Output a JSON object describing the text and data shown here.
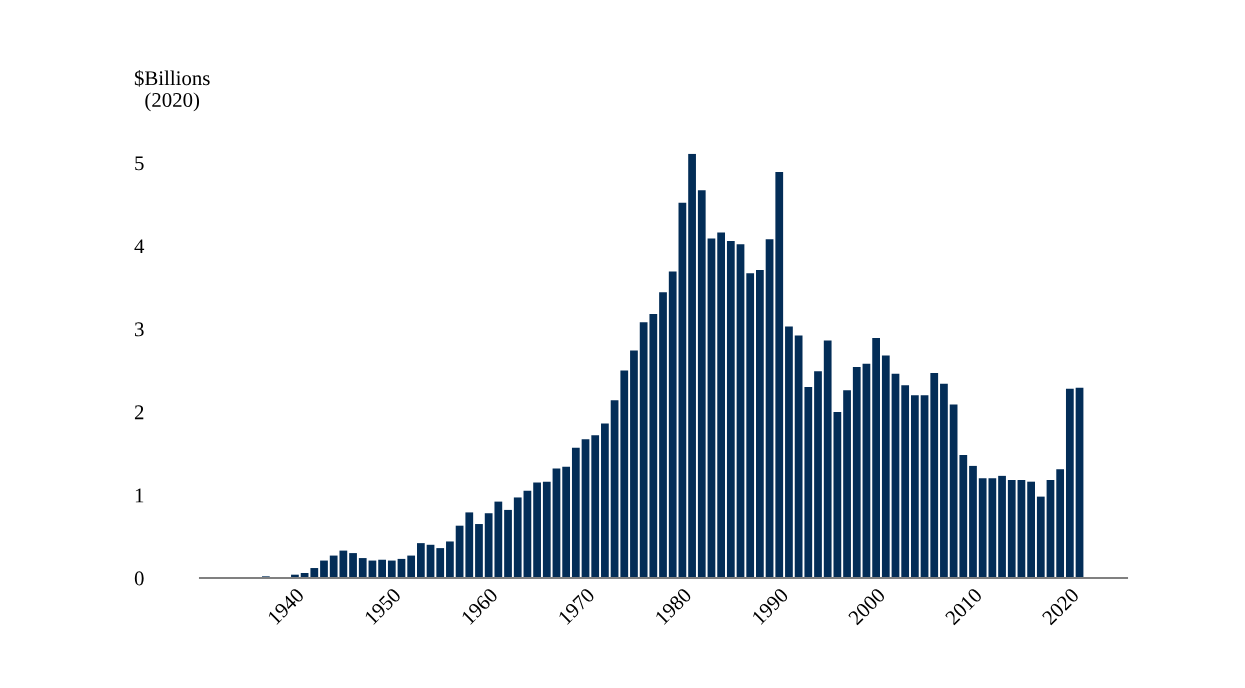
{
  "chart_data": {
    "type": "bar",
    "ylabel": "$Billions\n(2020)",
    "x": [
      1936,
      1937,
      1938,
      1939,
      1940,
      1941,
      1942,
      1943,
      1944,
      1945,
      1946,
      1947,
      1948,
      1949,
      1950,
      1951,
      1952,
      1953,
      1954,
      1955,
      1956,
      1957,
      1958,
      1959,
      1960,
      1961,
      1962,
      1963,
      1964,
      1965,
      1966,
      1967,
      1968,
      1969,
      1970,
      1971,
      1972,
      1973,
      1974,
      1975,
      1976,
      1977,
      1978,
      1979,
      1980,
      1981,
      1982,
      1983,
      1984,
      1985,
      1986,
      1987,
      1988,
      1989,
      1990,
      1991,
      1992,
      1993,
      1994,
      1995,
      1996,
      1997,
      1998,
      1999,
      2000,
      2001,
      2002,
      2003,
      2004,
      2005,
      2006,
      2007,
      2008,
      2009,
      2010,
      2011,
      2012,
      2013,
      2014,
      2015,
      2016,
      2017,
      2018,
      2019,
      2020,
      2021
    ],
    "values": [
      0.01,
      0.02,
      0.01,
      0.01,
      0.04,
      0.06,
      0.12,
      0.21,
      0.27,
      0.33,
      0.3,
      0.24,
      0.21,
      0.22,
      0.21,
      0.23,
      0.27,
      0.42,
      0.4,
      0.36,
      0.44,
      0.63,
      0.79,
      0.65,
      0.78,
      0.92,
      0.82,
      0.97,
      1.05,
      1.15,
      1.16,
      1.32,
      1.34,
      1.57,
      1.67,
      1.72,
      1.86,
      2.14,
      2.5,
      2.74,
      3.08,
      3.18,
      3.44,
      3.69,
      4.52,
      5.11,
      4.67,
      4.09,
      4.16,
      4.06,
      4.02,
      3.67,
      3.71,
      4.08,
      4.89,
      3.03,
      2.92,
      2.3,
      2.49,
      2.86,
      2.0,
      2.26,
      2.54,
      2.58,
      2.89,
      2.68,
      2.46,
      2.32,
      2.2,
      2.2,
      2.47,
      2.34,
      2.09,
      1.48,
      1.35,
      1.2,
      1.2,
      1.23,
      1.18,
      1.18,
      1.16,
      0.98,
      1.18,
      1.31,
      2.28,
      2.29
    ],
    "color": "#032d57",
    "xlim": [
      1930.2,
      2025.9
    ],
    "xticks": [
      1940,
      1950,
      1960,
      1970,
      1980,
      1990,
      2000,
      2010,
      2020
    ],
    "ylim": [
      0,
      5.11
    ],
    "yticks": [
      0,
      1,
      2,
      3,
      4,
      5
    ],
    "grid": false,
    "legend": false
  }
}
